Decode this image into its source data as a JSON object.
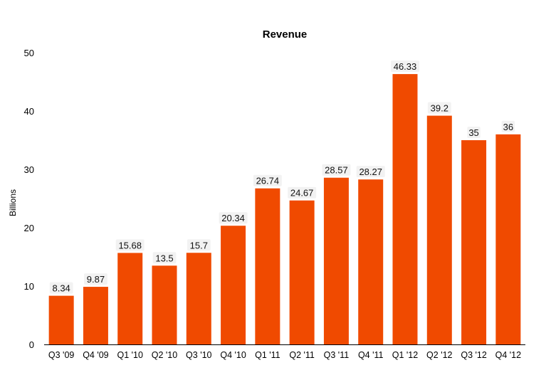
{
  "chart_data": {
    "type": "bar",
    "title": "Revenue",
    "xlabel": "",
    "ylabel": "Billions",
    "ylim": [
      0,
      50
    ],
    "yticks": [
      0,
      10,
      20,
      30,
      40,
      50
    ],
    "grid": false,
    "legend": "none",
    "bar_color": "#f04a00",
    "categories": [
      "Q3 '09",
      "Q4 '09",
      "Q1 '10",
      "Q2 '10",
      "Q3 '10",
      "Q4 '10",
      "Q1 '11",
      "Q2 '11",
      "Q3 '11",
      "Q4 '11",
      "Q1 '12",
      "Q2 '12",
      "Q3 '12",
      "Q4 '12"
    ],
    "values": [
      8.34,
      9.87,
      15.68,
      13.5,
      15.7,
      20.34,
      26.74,
      24.67,
      28.57,
      28.27,
      46.33,
      39.2,
      35,
      36
    ],
    "data_labels": [
      "8.34",
      "9.87",
      "15.68",
      "13.5",
      "15.7",
      "20.34",
      "26.74",
      "24.67",
      "28.57",
      "28.27",
      "46.33",
      "39.2",
      "35",
      "36"
    ]
  }
}
